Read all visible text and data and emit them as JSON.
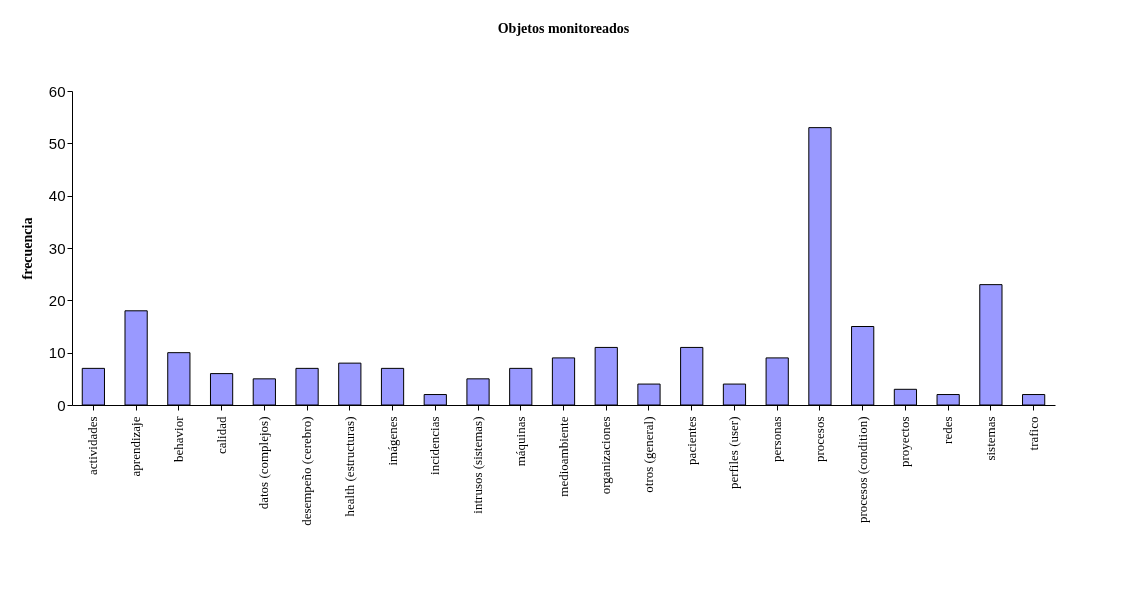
{
  "chart_data": {
    "type": "bar",
    "title": "Objetos monitoreados",
    "ylabel": "frecuencia",
    "categories": [
      "actividades",
      "aprendizaje",
      "behavior",
      "calidad",
      "datos (complejos)",
      "desempeño (cerebro)",
      "health (estructuras)",
      "imágenes",
      "incidencias",
      "intrusos (sistemas)",
      "máquinas",
      "medioambiente",
      "organizaciones",
      "otros (general)",
      "pacientes",
      "perfiles (user)",
      "personas",
      "procesos",
      "procesos (condition)",
      "proyectos",
      "redes",
      "sistemas",
      "trafico"
    ],
    "values": [
      7,
      18,
      10,
      6,
      5,
      7,
      8,
      7,
      2,
      5,
      7,
      9,
      11,
      4,
      11,
      4,
      9,
      53,
      15,
      3,
      2,
      23,
      2
    ],
    "color": "#9999ff",
    "ylim": [
      0,
      60
    ],
    "yticks": [
      0,
      10,
      20,
      30,
      40,
      50,
      60
    ],
    "grid": false
  }
}
